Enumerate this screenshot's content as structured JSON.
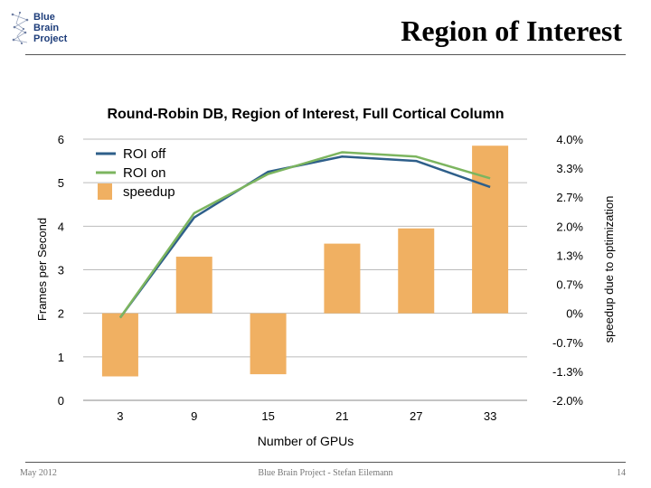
{
  "slide": {
    "logo_lines": [
      "Blue",
      "Brain",
      "Project"
    ],
    "title": "Region of Interest",
    "footer_left": "May 2012",
    "footer_center": "Blue Brain Project - Stefan Eilemann",
    "footer_right": "14"
  },
  "colors": {
    "roi_off": "#2e5f8a",
    "roi_on": "#7cb55f",
    "speedup": "#f0b062",
    "grid": "#bbbbbb",
    "logo_blue": "#1d3d7a"
  },
  "chart_data": {
    "type": "bar",
    "title": "Round-Robin DB, Region of Interest, Full Cortical Column",
    "xlabel": "Number of GPUs",
    "ylabel": "Frames per Second",
    "y2label": "speedup due to optimization",
    "categories": [
      "3",
      "9",
      "15",
      "21",
      "27",
      "33"
    ],
    "ylim": [
      0,
      6
    ],
    "yticks": [
      "0",
      "1",
      "2",
      "3",
      "4",
      "5",
      "6"
    ],
    "y2lim": [
      -2.0,
      4.0
    ],
    "y2ticks": [
      "-2.0%",
      "-1.3%",
      "-0.7%",
      "0%",
      "0.7%",
      "1.3%",
      "2.0%",
      "2.7%",
      "3.3%",
      "4.0%"
    ],
    "grid": true,
    "legend_position": "top-left",
    "series": [
      {
        "name": "ROI off",
        "type": "line",
        "axis": "left",
        "color": "#2e5f8a",
        "values": [
          1.9,
          4.2,
          5.25,
          5.6,
          5.5,
          4.9
        ]
      },
      {
        "name": "ROI on",
        "type": "line",
        "axis": "left",
        "color": "#7cb55f",
        "values": [
          1.9,
          4.3,
          5.2,
          5.7,
          5.6,
          5.1
        ]
      },
      {
        "name": "speedup",
        "type": "bar",
        "axis": "right",
        "color": "#f0b062",
        "values": [
          -1.45,
          1.3,
          -1.4,
          1.6,
          1.95,
          3.85
        ]
      }
    ]
  }
}
